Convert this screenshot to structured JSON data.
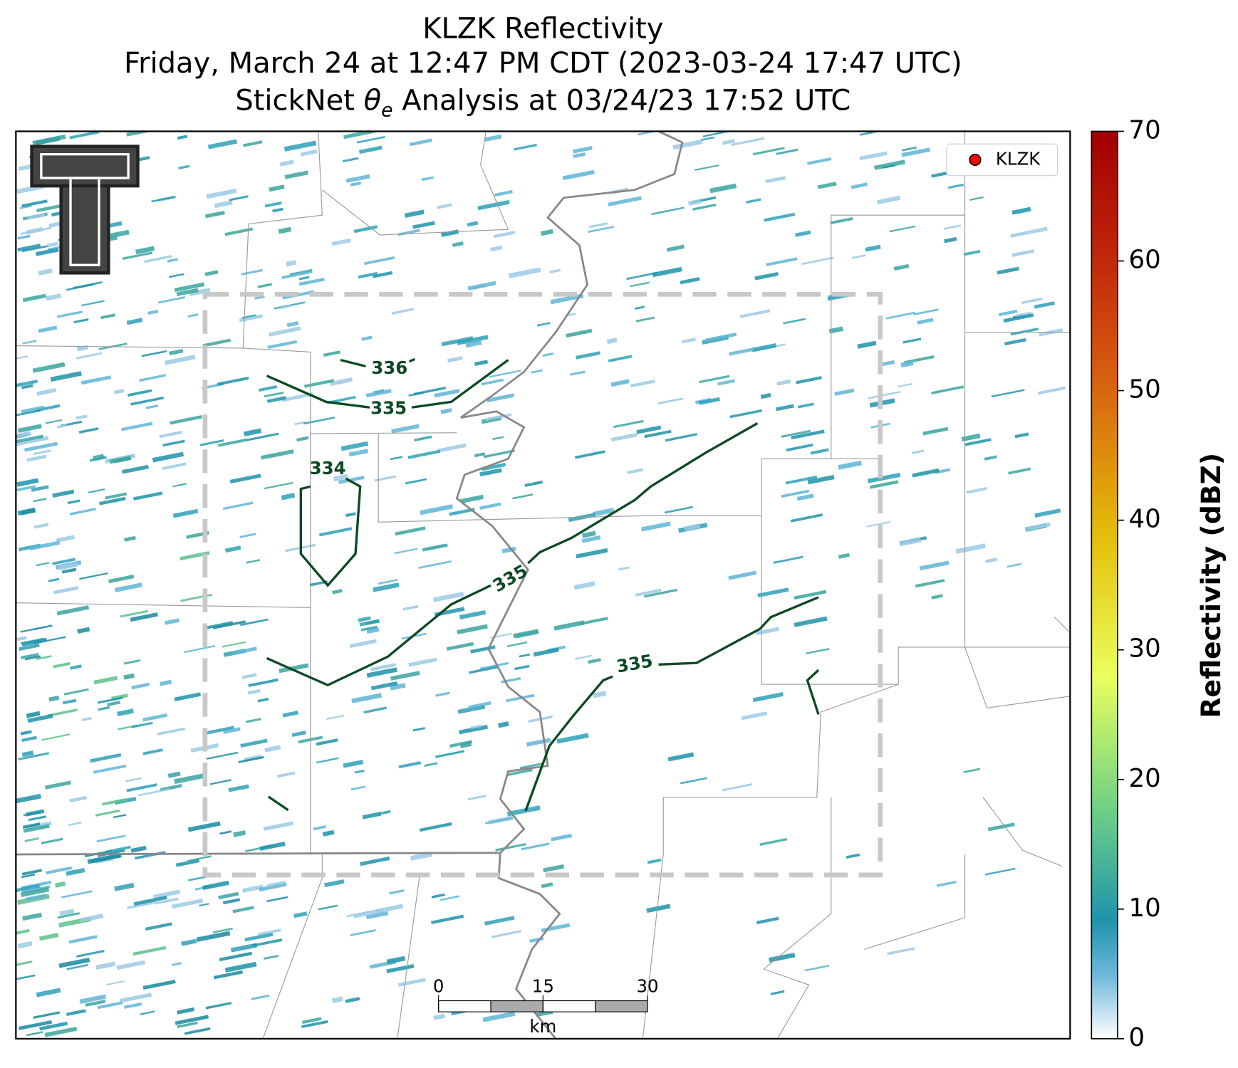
{
  "header": {
    "title": "KLZK Reflectivity",
    "subtitle": "Friday, March 24 at 12:47 PM CDT (2023-03-24 17:47 UTC)",
    "analysis_prefix": "StickNet ",
    "theta": "θ",
    "theta_sub": "e",
    "analysis_suffix": " Analysis at 03/24/23 17:52 UTC"
  },
  "legend": {
    "label": "KLZK"
  },
  "contours": {
    "labels": [
      336,
      335,
      334,
      335,
      335
    ]
  },
  "scale_bar": {
    "ticks": [
      0,
      15,
      30
    ],
    "unit": "km"
  },
  "colorbar": {
    "label": "Reflectivity (dBZ)",
    "lim": [
      0,
      70
    ],
    "ticks": [
      0,
      10,
      20,
      30,
      40,
      50,
      60,
      70
    ]
  }
}
